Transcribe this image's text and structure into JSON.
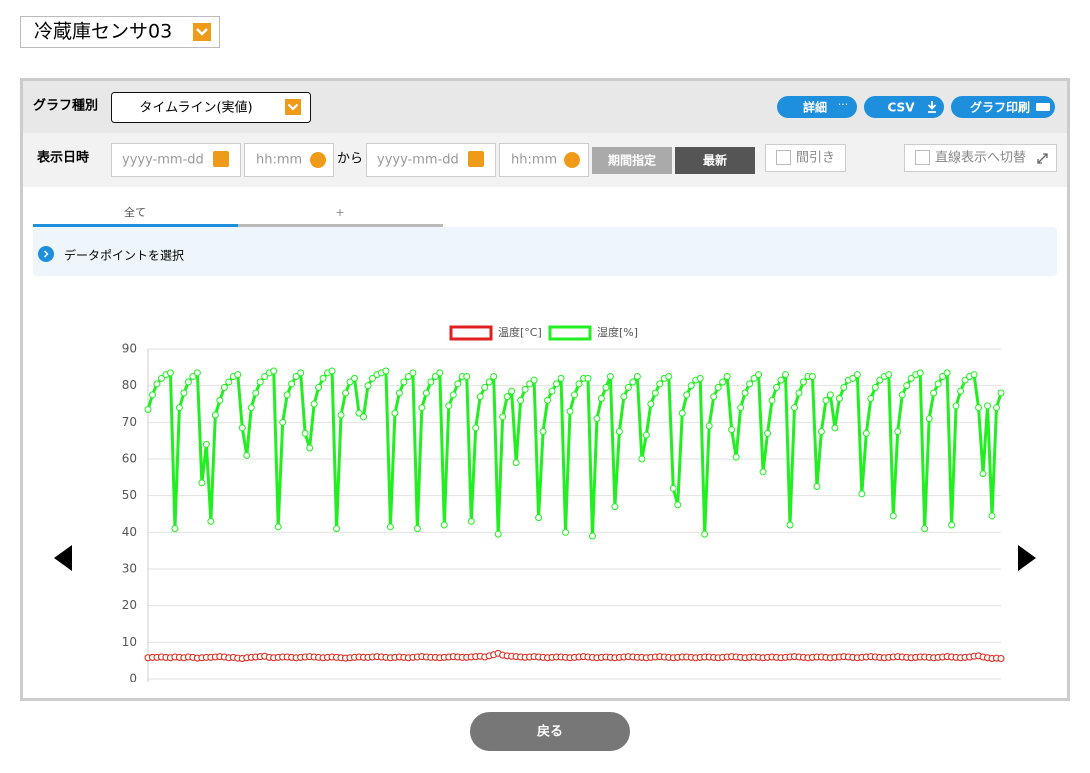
{
  "ui": {
    "sensor_select": "冷蔵庫センサ03",
    "graph_type_label": "グラフ種別",
    "graph_type_select": "タイムライン(実値)",
    "buttons": {
      "detail": "詳細",
      "csv": "CSV",
      "print": "グラフ印刷",
      "period": "期間指定",
      "latest": "最新",
      "back": "戻る"
    },
    "date_label": "表示日時",
    "date_from": "yyyy-mm-dd",
    "time_from": "hh:mm",
    "range_word": "から",
    "date_to": "yyyy-mm-dd",
    "time_to": "hh:mm",
    "thinning": "間引き",
    "linear_toggle": "直線表示へ切替",
    "tabs": [
      "全て",
      "+"
    ],
    "datapoint_select": "データポイントを選択"
  },
  "chart_data": {
    "type": "line",
    "ylim": [
      0,
      90
    ],
    "yticks": [
      0,
      10,
      20,
      30,
      40,
      50,
      60,
      70,
      80,
      90
    ],
    "grid": true,
    "legend": "top",
    "series": [
      {
        "name": "温度[°C]",
        "color": "#e02020",
        "values": [
          5.8,
          5.9,
          5.9,
          6,
          5.9,
          5.8,
          6,
          5.9,
          5.8,
          6,
          5.9,
          5.7,
          5.8,
          5.9,
          5.9,
          6,
          6.1,
          6,
          5.8,
          5.9,
          5.7,
          5.6,
          5.8,
          5.9,
          6,
          6.1,
          6.2,
          5.9,
          5.8,
          5.9,
          6,
          6,
          5.9,
          5.8,
          5.9,
          6,
          6.1,
          6,
          5.9,
          5.8,
          5.9,
          6,
          5.9,
          5.8,
          5.7,
          5.8,
          5.9,
          6,
          5.9,
          5.9,
          6,
          6.1,
          6,
          5.9,
          5.8,
          5.9,
          6,
          5.9,
          5.8,
          5.9,
          6,
          6.1,
          6,
          5.9,
          5.9,
          5.8,
          5.9,
          6,
          6.1,
          6,
          5.9,
          5.9,
          6,
          6.1,
          6.2,
          6,
          6.3,
          6.6,
          7,
          6.5,
          6.3,
          6.2,
          6.1,
          6,
          5.9,
          6,
          6.1,
          6,
          5.9,
          5.8,
          5.9,
          6,
          6,
          5.9,
          5.8,
          5.9,
          6,
          6.1,
          6,
          5.9,
          5.8,
          5.9,
          6,
          5.9,
          5.8,
          5.9,
          6,
          6.1,
          6,
          5.9,
          5.9,
          5.8,
          5.9,
          6,
          6.1,
          6,
          5.9,
          5.8,
          5.9,
          6,
          6,
          5.9,
          5.8,
          5.9,
          6,
          6,
          5.9,
          5.8,
          5.9,
          6,
          6.1,
          6,
          5.9,
          5.8,
          5.9,
          6,
          5.9,
          5.8,
          5.9,
          6,
          5.9,
          5.8,
          5.9,
          6,
          6.1,
          6,
          5.9,
          5.8,
          5.9,
          6,
          6,
          5.9,
          5.8,
          5.9,
          6,
          6.1,
          6,
          5.9,
          5.8,
          5.9,
          6,
          6.1,
          6,
          5.9,
          5.8,
          5.9,
          6,
          6.1,
          6,
          5.9,
          5.8,
          5.9,
          6,
          6,
          5.9,
          5.8,
          5.9,
          6,
          6.1,
          6,
          5.9,
          5.8,
          5.9,
          6,
          6.2,
          6.3,
          6,
          5.8,
          5.6,
          5.7,
          5.6
        ]
      },
      {
        "name": "湿度[%]",
        "color": "#22ee22",
        "values": [
          73.5,
          77.5,
          80.5,
          82,
          83,
          83.5,
          41,
          74,
          78,
          81,
          82.5,
          83.5,
          53.5,
          64,
          43,
          72,
          76,
          79.5,
          81,
          82.5,
          83,
          68.5,
          61,
          74,
          78,
          81,
          82.5,
          83.5,
          84,
          41.5,
          70,
          77.5,
          80.5,
          82.5,
          83.5,
          67,
          63,
          75,
          79.5,
          82,
          83.5,
          84,
          41,
          72,
          78,
          81,
          82,
          72.5,
          71.5,
          80,
          82,
          83,
          83.5,
          84,
          41.5,
          72.5,
          78,
          81,
          82.5,
          83.5,
          41,
          74,
          78,
          81,
          82.5,
          83.5,
          42,
          74.5,
          77.5,
          80.5,
          82.5,
          82.5,
          43,
          68.5,
          77,
          79.5,
          81,
          82.5,
          39.5,
          71.5,
          77,
          78.5,
          59,
          76,
          79,
          80.5,
          81.5,
          44,
          67.5,
          76,
          78.5,
          80.5,
          82,
          40,
          73,
          77.5,
          80.5,
          82,
          82,
          39,
          71,
          76.5,
          79.5,
          82.5,
          47,
          67.5,
          77,
          79.5,
          81,
          82.5,
          60,
          66.5,
          75,
          78,
          80.5,
          82,
          82.5,
          52,
          47.5,
          72.5,
          77.5,
          80,
          81.5,
          82,
          39.5,
          69,
          77,
          79.5,
          81,
          82.5,
          68,
          60.5,
          74,
          78,
          80.5,
          82,
          83,
          56.5,
          67,
          76,
          79.5,
          81.5,
          83,
          42,
          74,
          78,
          81,
          82.5,
          82.5,
          52.5,
          67.5,
          76,
          77.5,
          68.5,
          76.5,
          79.5,
          81.5,
          82,
          83,
          50.5,
          67,
          76.5,
          79.5,
          81.5,
          82.5,
          83,
          44.5,
          67.5,
          77.5,
          80,
          82,
          83,
          83.5,
          41,
          71,
          78,
          80.5,
          82.5,
          83.5,
          42,
          74.5,
          78.5,
          81.5,
          82.5,
          83,
          74,
          56,
          74.5,
          44.5,
          74,
          78
        ]
      }
    ]
  }
}
